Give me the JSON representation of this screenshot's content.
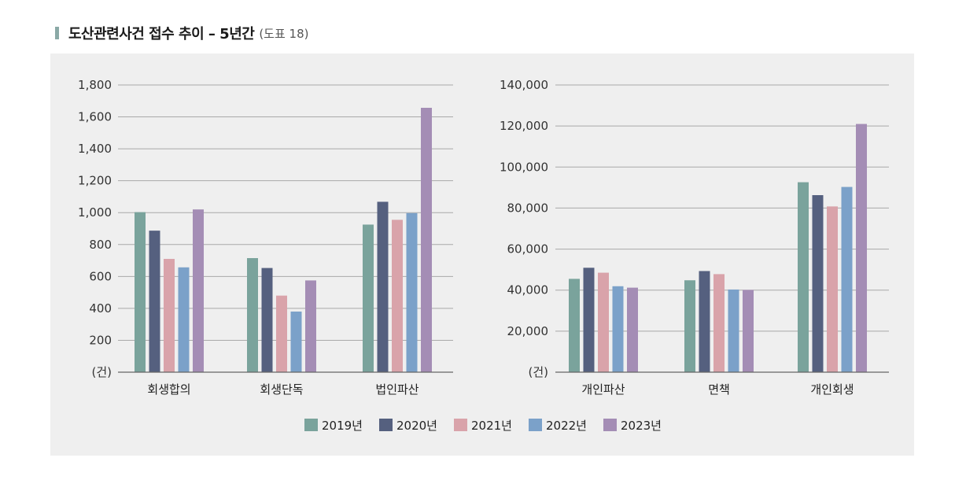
{
  "header": {
    "title": "도산관련사건  접수  추이 – 5년간",
    "subtitle": "(도표 18)"
  },
  "colors": {
    "2019년": "#7aa39c",
    "2020년": "#55607f",
    "2021년": "#d9a3aa",
    "2022년": "#7ba1c9",
    "2023년": "#a48db5",
    "grid": "#a9a9a9",
    "axis": "#666666",
    "panel_bg": "#efefef",
    "title_marker": "#8aa9a6"
  },
  "legend": [
    "2019년",
    "2020년",
    "2021년",
    "2022년",
    "2023년"
  ],
  "chart_data": [
    {
      "type": "bar",
      "categories": [
        "회생합의",
        "회생단독",
        "법인파산"
      ],
      "series": [
        {
          "name": "2019년",
          "values": [
            1003,
            715,
            925
          ]
        },
        {
          "name": "2020년",
          "values": [
            887,
            653,
            1068
          ]
        },
        {
          "name": "2021년",
          "values": [
            710,
            480,
            955
          ]
        },
        {
          "name": "2022년",
          "values": [
            657,
            380,
            997
          ]
        },
        {
          "name": "2023년",
          "values": [
            1020,
            575,
            1657
          ]
        }
      ],
      "ylim": [
        0,
        1800
      ],
      "yticks": [
        200,
        400,
        600,
        800,
        1000,
        1200,
        1400,
        1600,
        1800
      ],
      "ytick_labels": [
        "200",
        "400",
        "600",
        "800",
        "1,000",
        "1,200",
        "1,400",
        "1,600",
        "1,800"
      ],
      "ylabel": "(건)",
      "grid": true,
      "legend_position": "bottom"
    },
    {
      "type": "bar",
      "categories": [
        "개인파산",
        "면책",
        "개인회생"
      ],
      "series": [
        {
          "name": "2019년",
          "values": [
            45500,
            44800,
            92600
          ]
        },
        {
          "name": "2020년",
          "values": [
            50900,
            49300,
            86300
          ]
        },
        {
          "name": "2021년",
          "values": [
            48500,
            47800,
            80800
          ]
        },
        {
          "name": "2022년",
          "values": [
            41900,
            40300,
            90300
          ]
        },
        {
          "name": "2023년",
          "values": [
            41200,
            40100,
            121000
          ]
        }
      ],
      "ylim": [
        0,
        140000
      ],
      "yticks": [
        20000,
        40000,
        60000,
        80000,
        100000,
        120000,
        140000
      ],
      "ytick_labels": [
        "20,000",
        "40,000",
        "60,000",
        "80,000",
        "100,000",
        "120,000",
        "140,000"
      ],
      "ylabel": "(건)",
      "grid": true,
      "legend_position": "bottom"
    }
  ]
}
